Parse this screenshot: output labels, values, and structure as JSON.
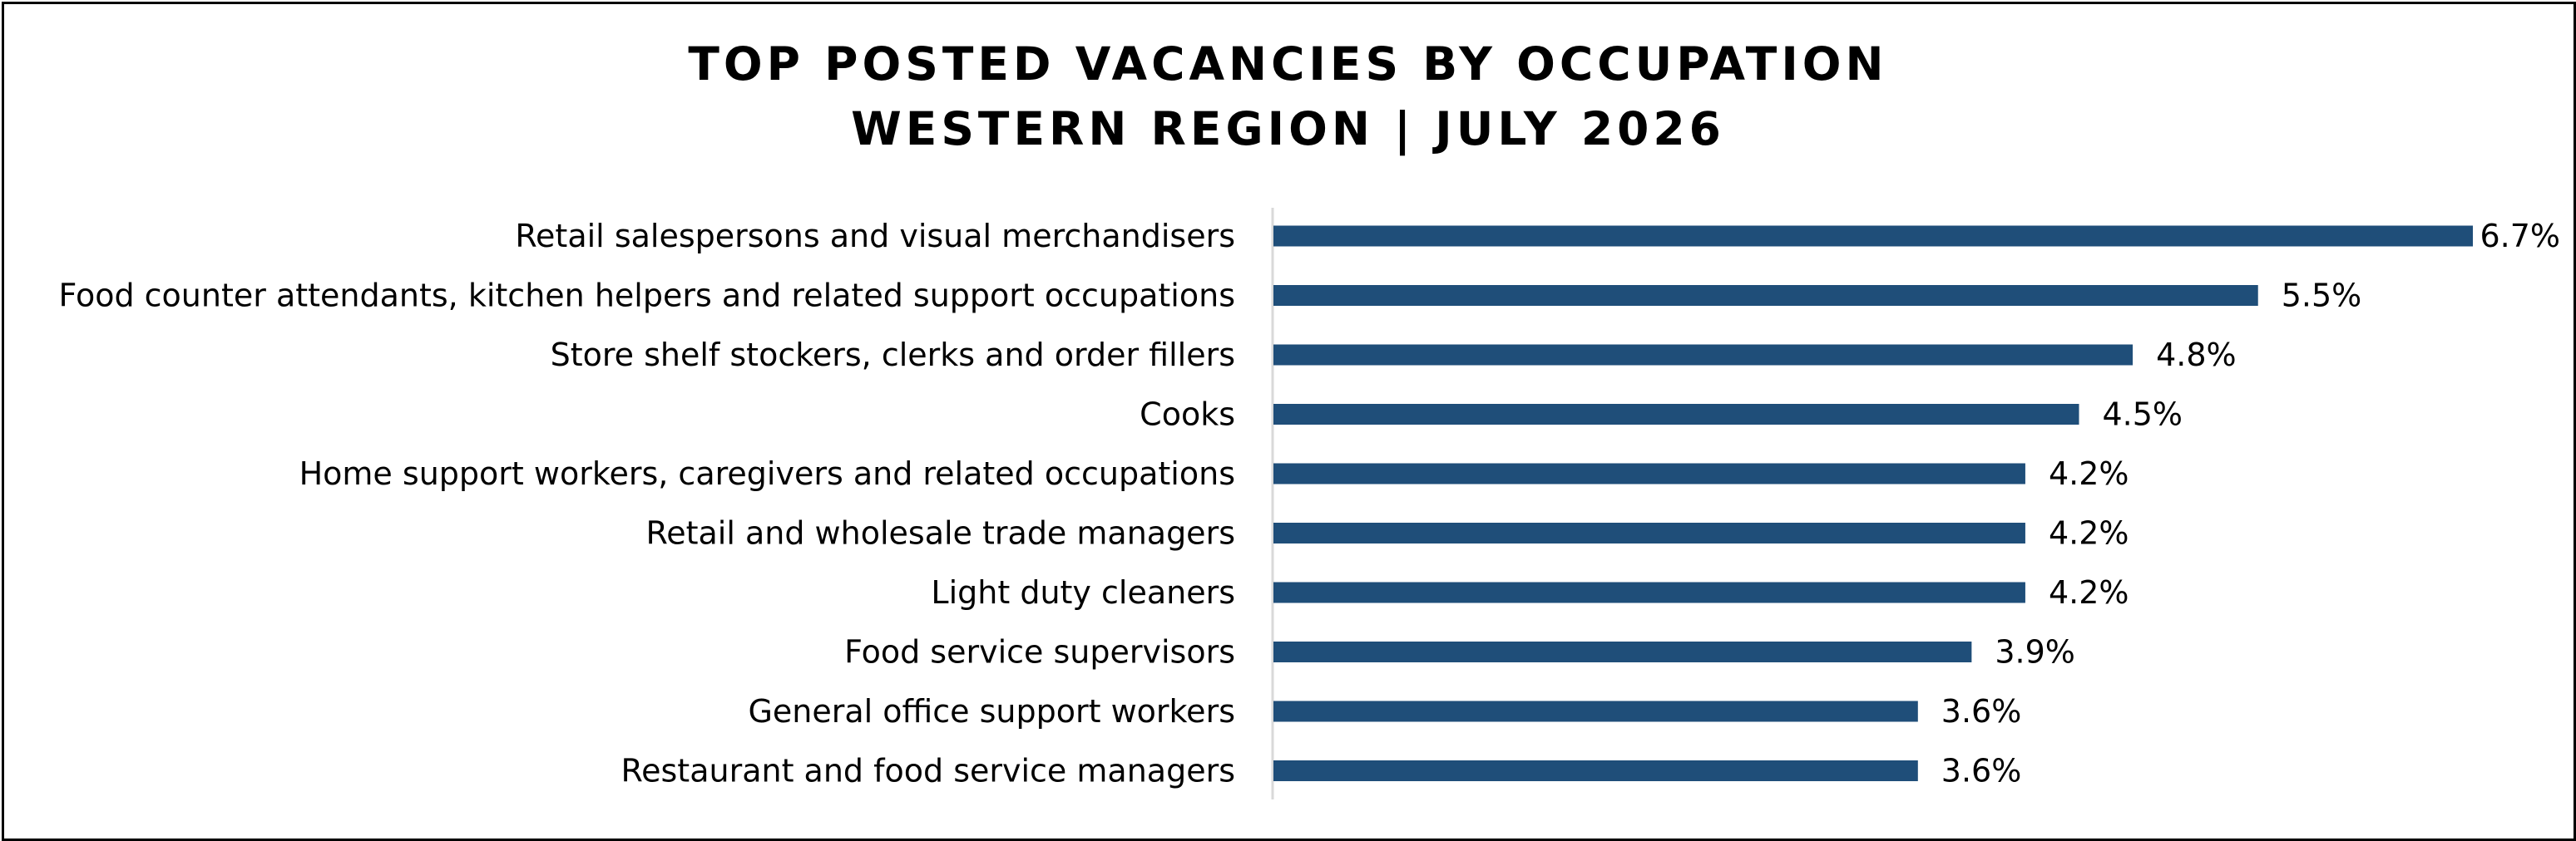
{
  "chart_data": {
    "type": "bar",
    "orientation": "horizontal",
    "title_lines": [
      "TOP POSTED VACANCIES BY OCCUPATION",
      "WESTERN REGION | JULY 2026"
    ],
    "categories": [
      "Retail salespersons and visual merchandisers",
      "Food counter attendants, kitchen helpers and related support occupations",
      "Store shelf stockers, clerks and order fillers",
      "Cooks",
      "Home support workers, caregivers and related occupations",
      "Retail and wholesale trade managers",
      "Light duty cleaners",
      "Food service supervisors",
      "General office support workers",
      "Restaurant and food service managers"
    ],
    "values": [
      6.7,
      5.5,
      4.8,
      4.5,
      4.2,
      4.2,
      4.2,
      3.9,
      3.6,
      3.6
    ],
    "value_labels": [
      "6.7%",
      "5.5%",
      "4.8%",
      "4.5%",
      "4.2%",
      "4.2%",
      "4.2%",
      "3.9%",
      "3.6%",
      "3.6%"
    ],
    "value_unit": "%",
    "xlim": [
      0,
      6.7
    ],
    "grid": false,
    "legend": "none",
    "bar_color": "#1f4e79",
    "axis_color": "#d9d9d9"
  }
}
